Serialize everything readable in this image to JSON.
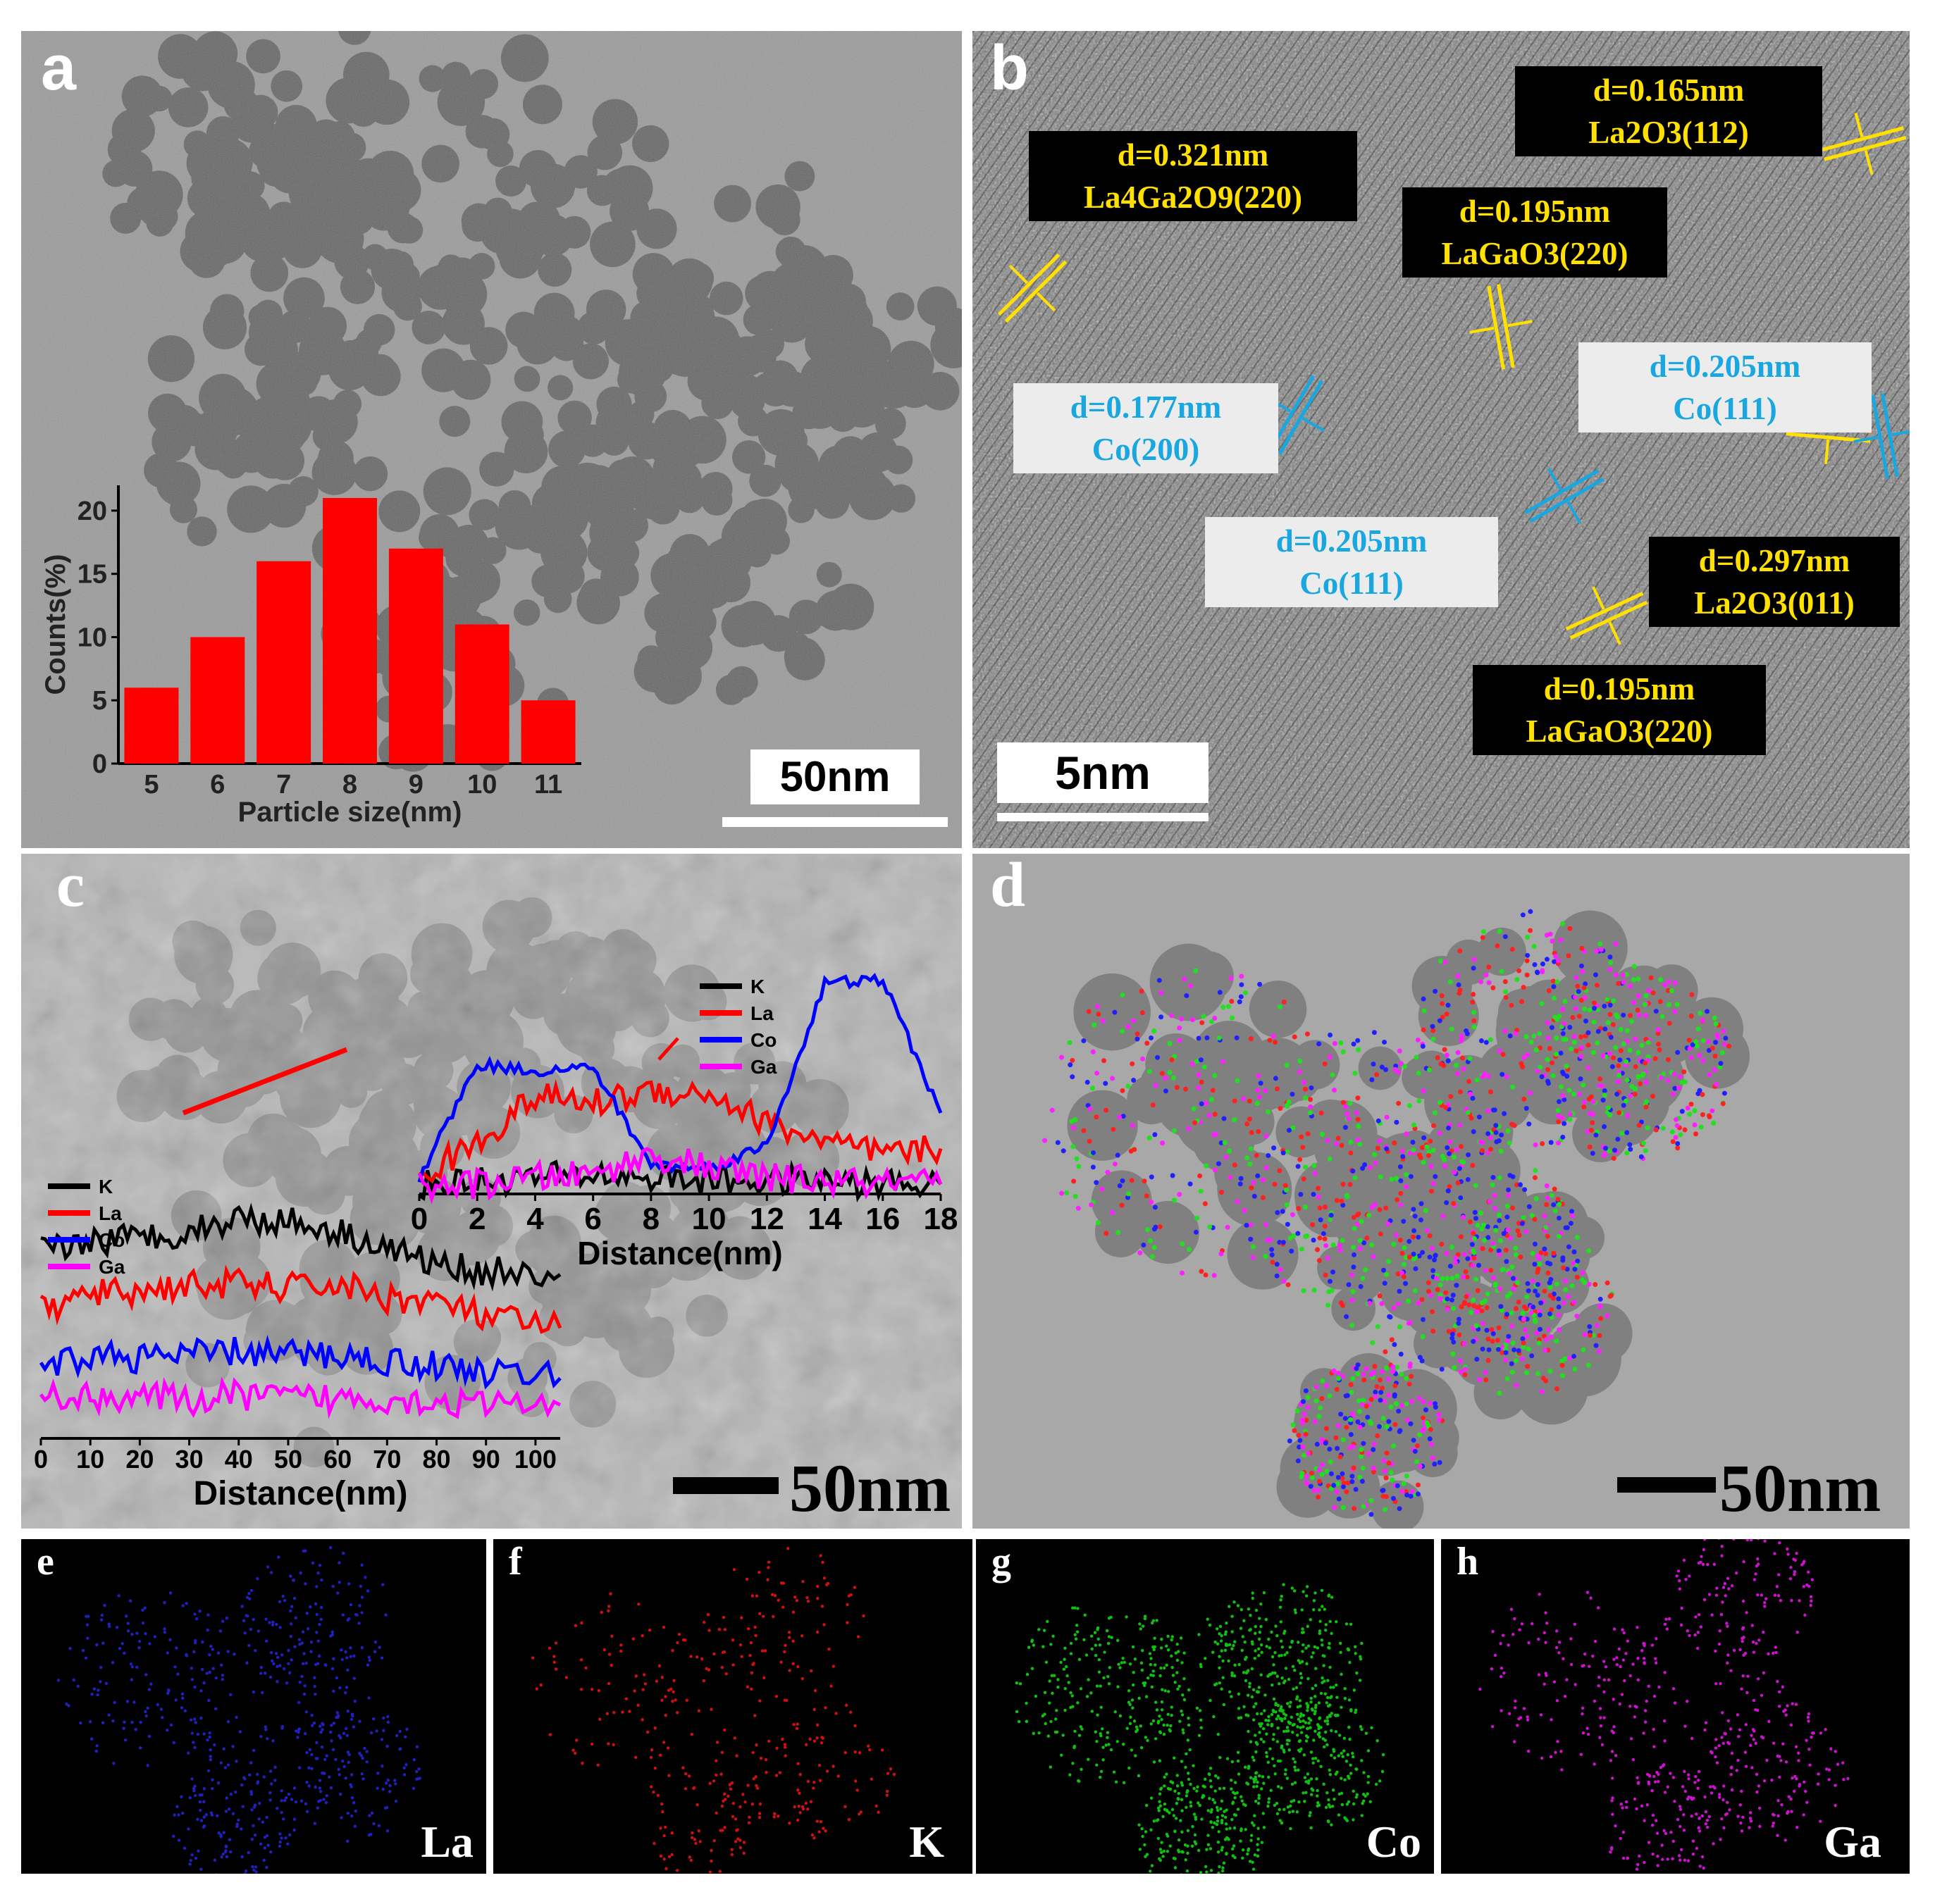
{
  "panels": {
    "a": {
      "label": "a",
      "scale_bar": "50nm",
      "inset_chart": {
        "type": "bar",
        "categories": [
          "5",
          "6",
          "7",
          "8",
          "9",
          "10",
          "11"
        ],
        "values": [
          6,
          10,
          16,
          21,
          17,
          11,
          5
        ],
        "xlabel": "Particle size(nm)",
        "ylabel": "Counts(%)",
        "ylim": [
          0,
          22
        ],
        "yticks": [
          "0",
          "5",
          "10",
          "15",
          "20"
        ],
        "bar_color": "#ff0000"
      }
    },
    "b": {
      "label": "b",
      "scale_bar": "5nm",
      "annotations": [
        {
          "d": "d=0.321nm",
          "phase": "La4Ga2O9(220)",
          "style": "dark"
        },
        {
          "d": "d=0.165nm",
          "phase": "La2O3(112)",
          "style": "dark"
        },
        {
          "d": "d=0.195nm",
          "phase": "LaGaO3(220)",
          "style": "dark"
        },
        {
          "d": "d=0.177nm",
          "phase": "Co(200)",
          "style": "light"
        },
        {
          "d": "d=0.205nm",
          "phase": "Co(111)",
          "style": "light"
        },
        {
          "d": "d=0.205nm",
          "phase": "Co(111)",
          "style": "light"
        },
        {
          "d": "d=0.297nm",
          "phase": "La2O3(011)",
          "style": "dark"
        },
        {
          "d": "d=0.195nm",
          "phase": "LaGaO3(220)",
          "style": "dark"
        }
      ]
    },
    "c": {
      "label": "c",
      "scale_bar": "50nm",
      "line_profile_short": {
        "type": "line",
        "xlabel": "Distance(nm)",
        "xlim": [
          0,
          18
        ],
        "xticks": [
          "0",
          "2",
          "4",
          "6",
          "8",
          "10",
          "12",
          "14",
          "16",
          "18"
        ],
        "legend": [
          "K",
          "La",
          "Co",
          "Ga"
        ],
        "colors": {
          "K": "#000000",
          "La": "#ff0000",
          "Co": "#0000ff",
          "Ga": "#ff00ff"
        },
        "series": [
          {
            "name": "K",
            "x": [
              0,
              2,
              4,
              6,
              8,
              10,
              12,
              14,
              16,
              18
            ],
            "values": [
              0.3,
              0.4,
              0.5,
              0.6,
              0.5,
              0.4,
              0.4,
              0.4,
              0.3,
              0.3
            ]
          },
          {
            "name": "La",
            "x": [
              0,
              2,
              4,
              6,
              8,
              10,
              12,
              14,
              16,
              18
            ],
            "values": [
              0.5,
              1.6,
              3.0,
              2.8,
              3.2,
              3.1,
              2.2,
              1.6,
              1.2,
              1.4
            ]
          },
          {
            "name": "Co",
            "x": [
              0,
              2,
              4,
              6,
              8,
              10,
              12,
              14,
              16,
              18
            ],
            "values": [
              0.5,
              4.0,
              3.8,
              3.9,
              0.9,
              0.8,
              1.5,
              6.5,
              6.6,
              2.5
            ]
          },
          {
            "name": "Ga",
            "x": [
              0,
              2,
              4,
              6,
              8,
              10,
              12,
              14,
              16,
              18
            ],
            "values": [
              0.2,
              0.3,
              0.5,
              0.6,
              1.2,
              0.8,
              0.5,
              0.4,
              0.3,
              0.3
            ]
          }
        ]
      },
      "line_profile_long": {
        "type": "line",
        "xlabel": "Distance(nm)",
        "xlim": [
          0,
          105
        ],
        "xticks": [
          "0",
          "10",
          "20",
          "30",
          "40",
          "50",
          "60",
          "70",
          "80",
          "90",
          "100"
        ],
        "legend": [
          "K",
          "La",
          "Co",
          "Ga"
        ],
        "colors": {
          "K": "#000000",
          "La": "#ff0000",
          "Co": "#0000ff",
          "Ga": "#ff00ff"
        },
        "series": [
          {
            "name": "K",
            "x": [
              0,
              10,
              20,
              30,
              40,
              50,
              60,
              70,
              80,
              90,
              105
            ],
            "values": [
              5.6,
              5.9,
              6.0,
              6.2,
              6.6,
              6.5,
              6.2,
              5.7,
              5.2,
              5.0,
              4.9
            ]
          },
          {
            "name": "La",
            "x": [
              0,
              10,
              20,
              30,
              40,
              50,
              60,
              70,
              80,
              90,
              105
            ],
            "values": [
              3.8,
              4.3,
              4.4,
              4.6,
              4.6,
              4.5,
              4.6,
              4.2,
              4.1,
              3.6,
              3.3
            ]
          },
          {
            "name": "Co",
            "x": [
              0,
              10,
              20,
              30,
              40,
              50,
              60,
              70,
              80,
              90,
              105
            ],
            "values": [
              2.0,
              2.5,
              2.4,
              2.5,
              2.6,
              2.5,
              2.5,
              2.3,
              2.2,
              2.0,
              1.8
            ]
          },
          {
            "name": "Ga",
            "x": [
              0,
              10,
              20,
              30,
              40,
              50,
              60,
              70,
              80,
              90,
              105
            ],
            "values": [
              1.3,
              1.2,
              1.3,
              1.1,
              1.3,
              1.2,
              1.2,
              1.2,
              1.1,
              1.0,
              1.0
            ]
          }
        ]
      }
    },
    "d": {
      "label": "d",
      "scale_bar": "50nm"
    },
    "e": {
      "label": "e",
      "element": "La",
      "dot_color": "#2020c0"
    },
    "f": {
      "label": "f",
      "element": "K",
      "dot_color": "#d01010"
    },
    "g": {
      "label": "g",
      "element": "Co",
      "dot_color": "#10c010"
    },
    "h": {
      "label": "h",
      "element": "Ga",
      "dot_color": "#d010d0"
    }
  }
}
